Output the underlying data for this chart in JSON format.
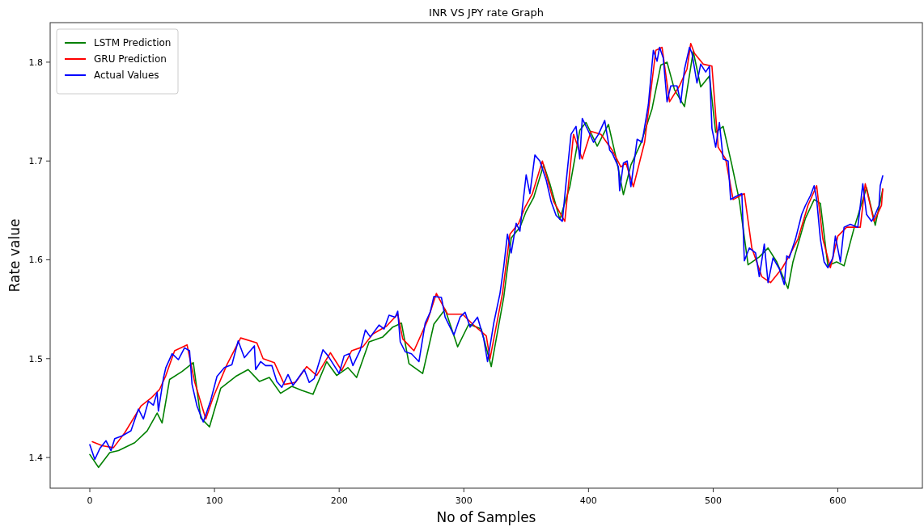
{
  "chart_data": {
    "type": "line",
    "title": "INR VS JPY rate Graph",
    "xlabel": "No of Samples",
    "ylabel": "Rate value",
    "xlim": [
      -31.8,
      667.8
    ],
    "xticks": [
      0,
      100,
      200,
      300,
      400,
      500,
      600
    ],
    "ylim": [
      1.369,
      1.84
    ],
    "yticks": [
      1.4,
      1.5,
      1.6,
      1.7,
      1.8
    ],
    "grid": false,
    "legend": "top left",
    "marker": "none",
    "line_style": "solid",
    "series": [
      {
        "name": "LSTM Prediction",
        "color": "#008000",
        "x": [
          0,
          7,
          16,
          23,
          36,
          46,
          54,
          58,
          64,
          74,
          83,
          89,
          96,
          105,
          117,
          127,
          136,
          144,
          153,
          162,
          170,
          179,
          190,
          198,
          207,
          214,
          224,
          235,
          243,
          250,
          256,
          267,
          276,
          285,
          295,
          304,
          314,
          322,
          332,
          338,
          345,
          350,
          356,
          364,
          369,
          377,
          385,
          393,
          398,
          407,
          416,
          422,
          428,
          434,
          442,
          451,
          458,
          463,
          469,
          477,
          484,
          490,
          497,
          502,
          508,
          515,
          521,
          528,
          537,
          544,
          551,
          560,
          564,
          574,
          581,
          586,
          592,
          599,
          605,
          613,
          623,
          630,
          636
        ],
        "values": [
          1.403,
          1.39,
          1.405,
          1.407,
          1.415,
          1.427,
          1.445,
          1.435,
          1.479,
          1.487,
          1.496,
          1.44,
          1.431,
          1.47,
          1.482,
          1.489,
          1.477,
          1.481,
          1.465,
          1.472,
          1.468,
          1.464,
          1.497,
          1.483,
          1.491,
          1.481,
          1.517,
          1.522,
          1.532,
          1.536,
          1.495,
          1.485,
          1.535,
          1.55,
          1.512,
          1.535,
          1.53,
          1.492,
          1.562,
          1.622,
          1.633,
          1.649,
          1.663,
          1.696,
          1.677,
          1.641,
          1.674,
          1.731,
          1.739,
          1.715,
          1.737,
          1.704,
          1.666,
          1.696,
          1.718,
          1.753,
          1.797,
          1.8,
          1.772,
          1.755,
          1.811,
          1.775,
          1.786,
          1.729,
          1.735,
          1.696,
          1.66,
          1.595,
          1.603,
          1.612,
          1.598,
          1.571,
          1.598,
          1.642,
          1.661,
          1.657,
          1.594,
          1.598,
          1.594,
          1.632,
          1.673,
          1.635,
          1.671
        ]
      },
      {
        "name": "GRU Prediction",
        "color": "#ff0000",
        "x": [
          2,
          10,
          19,
          28,
          41,
          49,
          56,
          61,
          68,
          78,
          84,
          93,
          99,
          110,
          121,
          134,
          139,
          148,
          156,
          165,
          174,
          182,
          193,
          202,
          210,
          219,
          227,
          238,
          247,
          251,
          260,
          271,
          278,
          287,
          299,
          307,
          318,
          321,
          331,
          337,
          344,
          349,
          355,
          363,
          372,
          381,
          388,
          395,
          402,
          410,
          419,
          426,
          430,
          436,
          445,
          454,
          459,
          465,
          473,
          479,
          482,
          485,
          492,
          499,
          504,
          510,
          516,
          525,
          531,
          539,
          546,
          555,
          561,
          568,
          576,
          583,
          588,
          594,
          600,
          607,
          618,
          622,
          629,
          635,
          636
        ],
        "values": [
          1.416,
          1.412,
          1.41,
          1.425,
          1.452,
          1.46,
          1.469,
          1.483,
          1.508,
          1.514,
          1.477,
          1.439,
          1.461,
          1.494,
          1.521,
          1.516,
          1.5,
          1.496,
          1.474,
          1.476,
          1.492,
          1.483,
          1.506,
          1.488,
          1.508,
          1.512,
          1.525,
          1.533,
          1.545,
          1.52,
          1.508,
          1.539,
          1.566,
          1.545,
          1.545,
          1.535,
          1.523,
          1.5,
          1.566,
          1.626,
          1.637,
          1.653,
          1.667,
          1.7,
          1.659,
          1.639,
          1.727,
          1.702,
          1.73,
          1.727,
          1.711,
          1.694,
          1.698,
          1.674,
          1.719,
          1.812,
          1.815,
          1.76,
          1.776,
          1.793,
          1.819,
          1.809,
          1.798,
          1.796,
          1.714,
          1.702,
          1.661,
          1.667,
          1.612,
          1.583,
          1.577,
          1.591,
          1.604,
          1.621,
          1.655,
          1.675,
          1.621,
          1.592,
          1.624,
          1.633,
          1.633,
          1.677,
          1.639,
          1.655,
          1.672
        ]
      },
      {
        "name": "Actual Values",
        "color": "#0000ff",
        "x": [
          0,
          4,
          8,
          13,
          17,
          20,
          26,
          33,
          39,
          43,
          47,
          51,
          54,
          55,
          59,
          61,
          66,
          71,
          76,
          80,
          82,
          86,
          91,
          93,
          97,
          102,
          108,
          114,
          119,
          124,
          132,
          133,
          137,
          141,
          146,
          150,
          154,
          159,
          163,
          167,
          172,
          176,
          180,
          187,
          191,
          195,
          200,
          204,
          208,
          211,
          217,
          221,
          225,
          232,
          236,
          240,
          245,
          247,
          249,
          253,
          258,
          264,
          269,
          273,
          276,
          282,
          285,
          292,
          297,
          301,
          305,
          311,
          316,
          319,
          324,
          329,
          332,
          335,
          338,
          342,
          345,
          347,
          350,
          353,
          357,
          361,
          366,
          370,
          374,
          379,
          382,
          386,
          390,
          393,
          395,
          400,
          404,
          408,
          413,
          417,
          419,
          424,
          425,
          428,
          431,
          434,
          439,
          443,
          448,
          452,
          455,
          457,
          460,
          463,
          466,
          471,
          474,
          477,
          481,
          483,
          487,
          490,
          494,
          497,
          499,
          502,
          505,
          508,
          512,
          514,
          518,
          523,
          525,
          529,
          534,
          537,
          541,
          544,
          548,
          553,
          557,
          559,
          561,
          566,
          571,
          574,
          578,
          581,
          583,
          586,
          589,
          592,
          596,
          598,
          602,
          605,
          610,
          616,
          620,
          623,
          627,
          629,
          633,
          634,
          636
        ],
        "values": [
          1.413,
          1.398,
          1.409,
          1.417,
          1.407,
          1.419,
          1.422,
          1.427,
          1.449,
          1.439,
          1.457,
          1.453,
          1.466,
          1.447,
          1.48,
          1.491,
          1.505,
          1.499,
          1.511,
          1.508,
          1.474,
          1.452,
          1.436,
          1.443,
          1.458,
          1.482,
          1.491,
          1.494,
          1.518,
          1.501,
          1.513,
          1.489,
          1.497,
          1.493,
          1.493,
          1.477,
          1.471,
          1.484,
          1.473,
          1.48,
          1.489,
          1.476,
          1.48,
          1.509,
          1.503,
          1.495,
          1.485,
          1.503,
          1.505,
          1.493,
          1.509,
          1.529,
          1.522,
          1.534,
          1.53,
          1.544,
          1.542,
          1.548,
          1.517,
          1.507,
          1.505,
          1.497,
          1.536,
          1.547,
          1.563,
          1.562,
          1.542,
          1.524,
          1.542,
          1.547,
          1.532,
          1.542,
          1.52,
          1.497,
          1.536,
          1.566,
          1.593,
          1.626,
          1.607,
          1.637,
          1.629,
          1.653,
          1.686,
          1.667,
          1.706,
          1.7,
          1.681,
          1.659,
          1.645,
          1.639,
          1.678,
          1.727,
          1.735,
          1.702,
          1.743,
          1.73,
          1.719,
          1.727,
          1.741,
          1.711,
          1.708,
          1.694,
          1.67,
          1.698,
          1.7,
          1.674,
          1.722,
          1.719,
          1.757,
          1.812,
          1.801,
          1.815,
          1.804,
          1.76,
          1.776,
          1.776,
          1.759,
          1.793,
          1.815,
          1.809,
          1.779,
          1.798,
          1.79,
          1.796,
          1.733,
          1.714,
          1.739,
          1.702,
          1.7,
          1.661,
          1.664,
          1.667,
          1.599,
          1.612,
          1.607,
          1.583,
          1.616,
          1.577,
          1.602,
          1.591,
          1.575,
          1.604,
          1.602,
          1.621,
          1.646,
          1.655,
          1.665,
          1.675,
          1.661,
          1.621,
          1.598,
          1.592,
          1.602,
          1.624,
          1.598,
          1.633,
          1.636,
          1.633,
          1.677,
          1.646,
          1.639,
          1.643,
          1.655,
          1.675,
          1.685
        ]
      }
    ]
  }
}
